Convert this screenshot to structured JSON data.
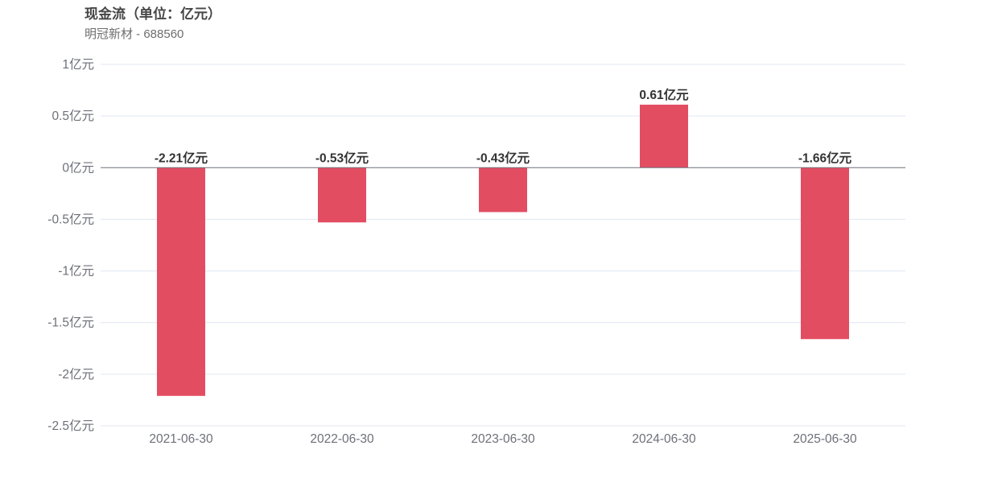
{
  "chart_data": {
    "type": "bar",
    "title": "现金流（单位：亿元）",
    "subtitle": "明冠新材 - 688560",
    "categories": [
      "2021-06-30",
      "2022-06-30",
      "2023-06-30",
      "2024-06-30",
      "2025-06-30"
    ],
    "values": [
      -2.21,
      -0.53,
      -0.43,
      0.61,
      -1.66
    ],
    "data_labels": [
      "-2.21亿元",
      "-0.53亿元",
      "-0.43亿元",
      "0.61亿元",
      "-1.66亿元"
    ],
    "y_ticks": [
      1,
      0.5,
      0,
      -0.5,
      -1,
      -1.5,
      -2,
      -2.5
    ],
    "y_tick_labels": [
      "1亿元",
      "0.5亿元",
      "0亿元",
      "-0.5亿元",
      "-1亿元",
      "-1.5亿元",
      "-2亿元",
      "-2.5亿元"
    ],
    "ylim": [
      -2.5,
      1
    ],
    "xlabel": "",
    "ylabel": "",
    "grid": true,
    "legend": false,
    "bar_color": "#e34d62",
    "grid_color": "#e0e6f1",
    "zero_line_color": "#6e7079"
  }
}
